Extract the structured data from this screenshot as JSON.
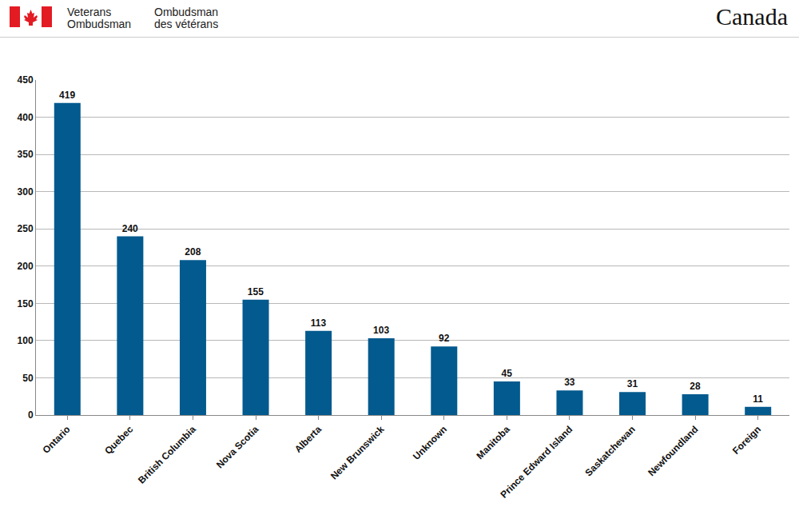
{
  "header": {
    "left": [
      "Veterans",
      "Ombudsman"
    ],
    "right": [
      "Ombudsman",
      "des vétérans"
    ],
    "wordmark": "Canada"
  },
  "chart_data": {
    "type": "bar",
    "categories": [
      "Ontario",
      "Quebec",
      "British Columbia",
      "Nova Scotia",
      "Alberta",
      "New Brunswick",
      "Unknown",
      "Manitoba",
      "Prince Edward Island",
      "Saskatchewan",
      "Newfoundland",
      "Foreign"
    ],
    "values": [
      419,
      240,
      208,
      155,
      113,
      103,
      92,
      45,
      33,
      31,
      28,
      11
    ],
    "color": "#025a8e",
    "ylim": [
      0,
      450
    ],
    "yticks": [
      0,
      50,
      100,
      150,
      200,
      250,
      300,
      350,
      400,
      450
    ],
    "grid": true,
    "data_labels": true
  }
}
